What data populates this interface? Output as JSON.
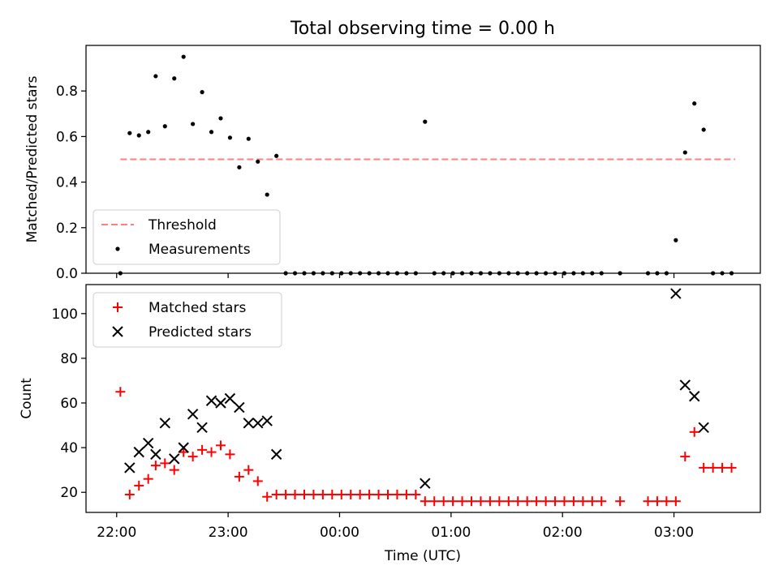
{
  "title": "Total observing time = 0.00 h",
  "colors": {
    "threshold": "#ff7f7f",
    "measurements": "#000000",
    "matched": "#ff0000",
    "predicted": "#000000",
    "axes": "#000000",
    "legend_border": "#cccccc"
  },
  "x_axis": {
    "label": "Time (UTC)",
    "ticks": [
      {
        "t": 0,
        "label": "22:00"
      },
      {
        "t": 60,
        "label": "23:00"
      },
      {
        "t": 120,
        "label": "00:00"
      },
      {
        "t": 180,
        "label": "01:00"
      },
      {
        "t": 240,
        "label": "02:00"
      },
      {
        "t": 300,
        "label": "03:00"
      }
    ],
    "xlim": [
      -16.5,
      346.5
    ]
  },
  "chart_data": [
    {
      "type": "scatter",
      "ylabel": "Matched/Predicted stars",
      "ylim": [
        0,
        1.0
      ],
      "yticks": [
        0.0,
        0.2,
        0.4,
        0.6,
        0.8
      ],
      "yticklabels": [
        "0.0",
        "0.2",
        "0.4",
        "0.6",
        "0.8"
      ],
      "legend_position": "lower-left",
      "threshold": {
        "name": "Threshold",
        "value": 0.5,
        "x": [
          2,
          333
        ],
        "style": "dashed"
      },
      "measurements": {
        "name": "Measurements",
        "x": [
          2,
          7,
          12,
          17,
          21,
          26,
          31,
          36,
          41,
          46,
          51,
          56,
          61,
          66,
          71,
          76,
          81,
          86,
          91,
          96,
          101,
          106,
          111,
          116,
          121,
          126,
          131,
          136,
          141,
          146,
          151,
          156,
          161,
          166,
          171,
          176,
          181,
          186,
          191,
          196,
          201,
          206,
          211,
          216,
          221,
          226,
          231,
          236,
          241,
          246,
          251,
          256,
          261,
          271,
          286,
          291,
          296,
          301,
          306,
          311,
          316,
          321,
          326,
          331
        ],
        "y": [
          0.0,
          0.615,
          0.605,
          0.62,
          0.865,
          0.645,
          0.855,
          0.95,
          0.655,
          0.795,
          0.62,
          0.68,
          0.595,
          0.465,
          0.59,
          0.49,
          0.345,
          0.515,
          0.0,
          0.0,
          0.0,
          0.0,
          0.0,
          0.0,
          0.0,
          0.0,
          0.0,
          0.0,
          0.0,
          0.0,
          0.0,
          0.0,
          0.0,
          0.665,
          0.0,
          0.0,
          0.0,
          0.0,
          0.0,
          0.0,
          0.0,
          0.0,
          0.0,
          0.0,
          0.0,
          0.0,
          0.0,
          0.0,
          0.0,
          0.0,
          0.0,
          0.0,
          0.0,
          0.0,
          0.0,
          0.0,
          0.0,
          0.145,
          0.53,
          0.745,
          0.63,
          0.0,
          0.0,
          0.0
        ]
      }
    },
    {
      "type": "scatter",
      "ylabel": "Count",
      "ylim": [
        11,
        113
      ],
      "yticks": [
        20,
        40,
        60,
        80,
        100
      ],
      "yticklabels": [
        "20",
        "40",
        "60",
        "80",
        "100"
      ],
      "legend_position": "upper-left",
      "series": [
        {
          "name": "Matched stars",
          "marker": "plus",
          "x": [
            2,
            7,
            12,
            17,
            21,
            26,
            31,
            36,
            41,
            46,
            51,
            56,
            61,
            66,
            71,
            76,
            81,
            86,
            91,
            96,
            101,
            106,
            111,
            116,
            121,
            126,
            131,
            136,
            141,
            146,
            151,
            156,
            161,
            166,
            171,
            176,
            181,
            186,
            191,
            196,
            201,
            206,
            211,
            216,
            221,
            226,
            231,
            236,
            241,
            246,
            251,
            256,
            261,
            271,
            286,
            291,
            296,
            301,
            306,
            311,
            316,
            321,
            326,
            331
          ],
          "y": [
            65,
            19,
            23,
            26,
            32,
            33,
            30,
            38,
            36,
            39,
            38,
            41,
            37,
            27,
            30,
            25,
            18,
            19,
            19,
            19,
            19,
            19,
            19,
            19,
            19,
            19,
            19,
            19,
            19,
            19,
            19,
            19,
            19,
            16,
            16,
            16,
            16,
            16,
            16,
            16,
            16,
            16,
            16,
            16,
            16,
            16,
            16,
            16,
            16,
            16,
            16,
            16,
            16,
            16,
            16,
            16,
            16,
            16,
            36,
            47,
            31,
            31,
            31,
            31
          ]
        },
        {
          "name": "Predicted stars",
          "marker": "x",
          "x": [
            7,
            12,
            17,
            21,
            26,
            31,
            36,
            41,
            46,
            51,
            56,
            61,
            66,
            71,
            76,
            81,
            86,
            166,
            301,
            306,
            311,
            316
          ],
          "y": [
            31,
            38,
            42,
            37,
            51,
            35,
            40,
            55,
            49,
            61,
            60,
            62,
            58,
            51,
            51,
            52,
            37,
            24,
            109,
            68,
            63,
            49
          ]
        }
      ]
    }
  ]
}
